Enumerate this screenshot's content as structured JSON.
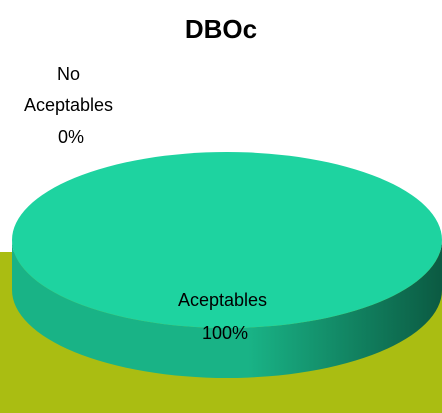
{
  "chart_data": {
    "type": "pie",
    "title": "DBOc",
    "slices": [
      {
        "name": "Aceptables",
        "value": 100,
        "label_lines": [
          "Aceptables",
          "100%"
        ],
        "color": "#1ed3a0"
      },
      {
        "name": "No Aceptables",
        "value": 0,
        "label_lines": [
          "No",
          "Aceptables",
          "0%"
        ],
        "color": "#1ed3a0"
      }
    ],
    "style": "3d",
    "colors": {
      "top_face": "#1ed3a0",
      "side_light": "#19b386",
      "side_dark": "#0b5a42",
      "floor": "#aabd12"
    }
  }
}
